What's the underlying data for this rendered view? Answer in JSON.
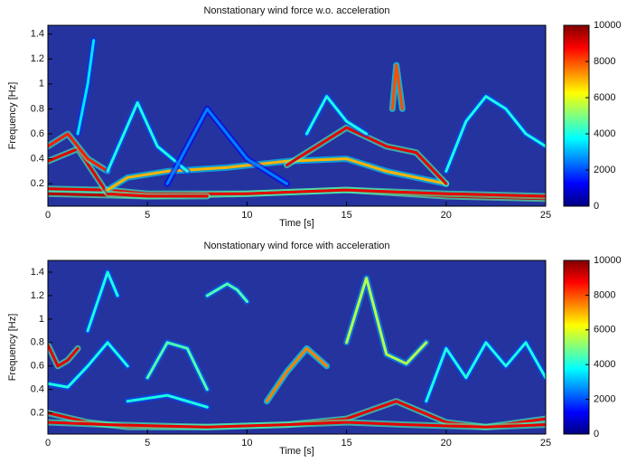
{
  "chart_data": [
    {
      "type": "spectrogram",
      "title": "Nonstationary wind force w.o. acceleration",
      "xlabel": "Time [s]",
      "ylabel": "Frequency [Hz]",
      "xlim": [
        0,
        25
      ],
      "ylim": [
        0.02,
        1.47
      ],
      "xticks": [
        0,
        5,
        10,
        15,
        20,
        25
      ],
      "yticks": [
        0.2,
        0.4,
        0.6,
        0.8,
        1,
        1.2,
        1.4
      ],
      "colormap": "jet",
      "colorbar": {
        "lim": [
          0,
          10000
        ],
        "ticks": [
          0,
          2000,
          4000,
          6000,
          8000,
          10000
        ]
      },
      "ridges": [
        {
          "x": [
            0,
            5,
            10,
            15,
            20,
            25
          ],
          "values": [
            0.12,
            0.1,
            0.12,
            0.15,
            0.1,
            0.08
          ],
          "amplitude": 9500
        },
        {
          "x": [
            0,
            3,
            5,
            10,
            15,
            20,
            25
          ],
          "values": [
            0.16,
            0.15,
            0.12,
            0.12,
            0.15,
            0.12,
            0.1
          ],
          "amplitude": 9000
        },
        {
          "x": [
            0,
            1.5,
            3,
            5,
            8
          ],
          "values": [
            0.38,
            0.48,
            0.12,
            0.1,
            0.1
          ],
          "amplitude": 9000
        },
        {
          "x": [
            0,
            1,
            1.5,
            2,
            3
          ],
          "values": [
            0.5,
            0.6,
            0.5,
            0.4,
            0.3
          ],
          "amplitude": 8500
        },
        {
          "x": [
            3,
            4,
            6,
            9,
            12,
            15,
            17,
            20
          ],
          "values": [
            0.15,
            0.25,
            0.3,
            0.33,
            0.38,
            0.4,
            0.3,
            0.2
          ],
          "amplitude": 7000
        },
        {
          "x": [
            12,
            15,
            17,
            18.5,
            20
          ],
          "values": [
            0.35,
            0.65,
            0.5,
            0.45,
            0.2
          ],
          "amplitude": 9000
        },
        {
          "x": [
            3,
            4.5,
            5.5,
            7
          ],
          "values": [
            0.3,
            0.85,
            0.5,
            0.3
          ],
          "amplitude": 4000
        },
        {
          "x": [
            13,
            14,
            15,
            16
          ],
          "values": [
            0.6,
            0.9,
            0.7,
            0.6
          ],
          "amplitude": 4000
        },
        {
          "x": [
            17.3,
            17.5,
            17.8
          ],
          "values": [
            0.8,
            1.15,
            0.8
          ],
          "amplitude": 8000
        },
        {
          "x": [
            20,
            21,
            22,
            23,
            24,
            25
          ],
          "values": [
            0.3,
            0.7,
            0.9,
            0.8,
            0.6,
            0.5
          ],
          "amplitude": 4000
        },
        {
          "x": [
            1.5,
            2,
            2.3
          ],
          "values": [
            0.6,
            1.0,
            1.35
          ],
          "amplitude": 3500
        },
        {
          "x": [
            6,
            8,
            10,
            12
          ],
          "values": [
            0.2,
            0.8,
            0.4,
            0.2
          ],
          "amplitude": 2500
        }
      ]
    },
    {
      "type": "spectrogram",
      "title": "Nonstationary wind force with acceleration",
      "xlabel": "Time [s]",
      "ylabel": "Frequency [Hz]",
      "xlim": [
        0,
        25
      ],
      "ylim": [
        0.02,
        1.5
      ],
      "xticks": [
        0,
        5,
        10,
        15,
        20,
        25
      ],
      "yticks": [
        0.2,
        0.4,
        0.6,
        0.8,
        1,
        1.2,
        1.4
      ],
      "colormap": "jet",
      "colorbar": {
        "lim": [
          0,
          10000
        ],
        "ticks": [
          0,
          2000,
          4000,
          6000,
          8000,
          10000
        ]
      },
      "ridges": [
        {
          "x": [
            0,
            2,
            4,
            8,
            12,
            15,
            17.5,
            20,
            22,
            25
          ],
          "values": [
            0.2,
            0.12,
            0.08,
            0.08,
            0.1,
            0.15,
            0.3,
            0.12,
            0.08,
            0.15
          ],
          "amplitude": 9000
        },
        {
          "x": [
            0,
            3,
            8,
            12,
            15,
            18,
            22,
            25
          ],
          "values": [
            0.12,
            0.1,
            0.08,
            0.1,
            0.12,
            0.1,
            0.08,
            0.1
          ],
          "amplitude": 9000
        },
        {
          "x": [
            0,
            0.5,
            1,
            1.5
          ],
          "values": [
            0.78,
            0.6,
            0.65,
            0.75
          ],
          "amplitude": 9000
        },
        {
          "x": [
            0,
            1,
            2,
            3,
            4
          ],
          "values": [
            0.45,
            0.42,
            0.6,
            0.8,
            0.6
          ],
          "amplitude": 4000
        },
        {
          "x": [
            4,
            6,
            8
          ],
          "values": [
            0.3,
            0.35,
            0.25
          ],
          "amplitude": 4000
        },
        {
          "x": [
            5,
            6,
            7,
            8
          ],
          "values": [
            0.5,
            0.8,
            0.75,
            0.4
          ],
          "amplitude": 4500
        },
        {
          "x": [
            11,
            12,
            13,
            14
          ],
          "values": [
            0.3,
            0.55,
            0.75,
            0.6
          ],
          "amplitude": 7500
        },
        {
          "x": [
            15,
            16,
            17,
            18,
            19
          ],
          "values": [
            0.8,
            1.35,
            0.7,
            0.62,
            0.8
          ],
          "amplitude": 5500
        },
        {
          "x": [
            19,
            20,
            21,
            22,
            23,
            24,
            25
          ],
          "values": [
            0.3,
            0.75,
            0.5,
            0.8,
            0.6,
            0.8,
            0.5
          ],
          "amplitude": 4000
        },
        {
          "x": [
            2,
            3,
            3.5
          ],
          "values": [
            0.9,
            1.4,
            1.2
          ],
          "amplitude": 4000
        },
        {
          "x": [
            8,
            9,
            9.5,
            10
          ],
          "values": [
            1.2,
            1.3,
            1.25,
            1.15
          ],
          "amplitude": 4500
        }
      ]
    }
  ]
}
